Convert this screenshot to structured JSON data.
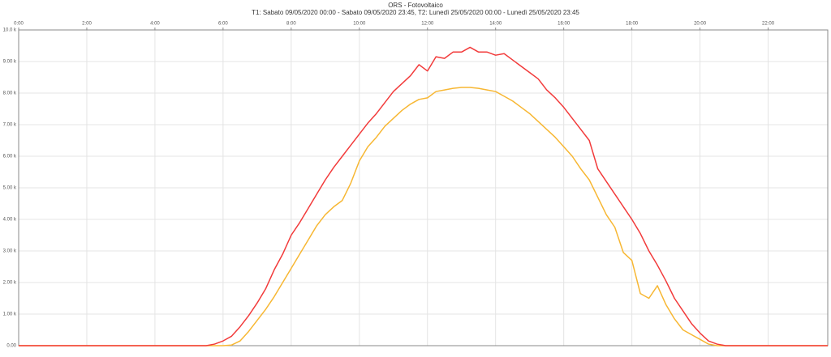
{
  "chart_data": {
    "type": "line",
    "title": "ORS - Fotovoltaico",
    "subtitle": "T1: Sabato 09/05/2020 00:00 - Sabato 09/05/2020 23:45, T2: Lunedì 25/05/2020 00:00 - Lunedì 25/05/2020 23:45",
    "x": [
      0,
      0.25,
      0.5,
      0.75,
      1,
      1.25,
      1.5,
      1.75,
      2,
      2.25,
      2.5,
      2.75,
      3,
      3.25,
      3.5,
      3.75,
      4,
      4.25,
      4.5,
      4.75,
      5,
      5.25,
      5.5,
      5.75,
      6,
      6.25,
      6.5,
      6.75,
      7,
      7.25,
      7.5,
      7.75,
      8,
      8.25,
      8.5,
      8.75,
      9,
      9.25,
      9.5,
      9.75,
      10,
      10.25,
      10.5,
      10.75,
      11,
      11.25,
      11.5,
      11.75,
      12,
      12.25,
      12.5,
      12.75,
      13,
      13.25,
      13.5,
      13.75,
      14,
      14.25,
      14.5,
      14.75,
      15,
      15.25,
      15.5,
      15.75,
      16,
      16.25,
      16.5,
      16.75,
      17,
      17.25,
      17.5,
      17.75,
      18,
      18.25,
      18.5,
      18.75,
      19,
      19.25,
      19.5,
      19.75,
      20,
      20.25,
      20.5,
      20.75,
      21,
      21.25,
      21.5,
      21.75,
      22,
      22.25,
      22.5,
      22.75,
      23,
      23.25,
      23.5,
      23.75
    ],
    "series": [
      {
        "color": "#f23b3b",
        "values": [
          0,
          0,
          0,
          0,
          0,
          0,
          0,
          0,
          0,
          0,
          0,
          0,
          0,
          0,
          0,
          0,
          0,
          0,
          0,
          0,
          0,
          0,
          0,
          50,
          150,
          300,
          600,
          950,
          1350,
          1800,
          2400,
          2900,
          3500,
          3900,
          4350,
          4800,
          5250,
          5650,
          6000,
          6350,
          6700,
          7050,
          7350,
          7700,
          8050,
          8300,
          8550,
          8900,
          8700,
          9150,
          9100,
          9300,
          9300,
          9450,
          9300,
          9300,
          9200,
          9250,
          9050,
          8850,
          8650,
          8450,
          8100,
          7850,
          7550,
          7200,
          6850,
          6500,
          5600,
          5200,
          4800,
          4400,
          4000,
          3550,
          3000,
          2550,
          2050,
          1500,
          1100,
          700,
          400,
          150,
          50,
          0,
          0,
          0,
          0,
          0,
          0,
          0,
          0,
          0,
          0,
          0,
          0,
          0
        ]
      },
      {
        "color": "#f7b733",
        "values": [
          0,
          0,
          0,
          0,
          0,
          0,
          0,
          0,
          0,
          0,
          0,
          0,
          0,
          0,
          0,
          0,
          0,
          0,
          0,
          0,
          0,
          0,
          0,
          0,
          0,
          20,
          150,
          450,
          800,
          1150,
          1550,
          2000,
          2450,
          2900,
          3350,
          3800,
          4150,
          4400,
          4600,
          5150,
          5850,
          6300,
          6600,
          6950,
          7200,
          7450,
          7650,
          7800,
          7850,
          8050,
          8100,
          8150,
          8180,
          8180,
          8150,
          8100,
          8050,
          7900,
          7750,
          7550,
          7350,
          7100,
          6850,
          6600,
          6300,
          6000,
          5600,
          5250,
          4700,
          4150,
          3750,
          2950,
          2700,
          1650,
          1500,
          1900,
          1300,
          850,
          500,
          350,
          200,
          50,
          0,
          0,
          0,
          0,
          0,
          0,
          0,
          0,
          0,
          0,
          0,
          0,
          0,
          0
        ]
      }
    ],
    "xlim": [
      0,
      23.75
    ],
    "xticks": [
      {
        "value": 0,
        "label": "0:00"
      },
      {
        "value": 2,
        "label": "2:00"
      },
      {
        "value": 4,
        "label": "4:00"
      },
      {
        "value": 6,
        "label": "6:00"
      },
      {
        "value": 8,
        "label": "8:00"
      },
      {
        "value": 10,
        "label": "10:00"
      },
      {
        "value": 12,
        "label": "12:00"
      },
      {
        "value": 14,
        "label": "14:00"
      },
      {
        "value": 16,
        "label": "16:00"
      },
      {
        "value": 18,
        "label": "18:00"
      },
      {
        "value": 20,
        "label": "20:00"
      },
      {
        "value": 22,
        "label": "22:00"
      }
    ],
    "ylim": [
      0,
      10000
    ],
    "yticks": [
      {
        "value": 0,
        "label": "0.00"
      },
      {
        "value": 1000,
        "label": "1.00 k"
      },
      {
        "value": 2000,
        "label": "2.00 k"
      },
      {
        "value": 3000,
        "label": "3.00 k"
      },
      {
        "value": 4000,
        "label": "4.00 k"
      },
      {
        "value": 5000,
        "label": "5.00 k"
      },
      {
        "value": 6000,
        "label": "6.00 k"
      },
      {
        "value": 7000,
        "label": "7.00 k"
      },
      {
        "value": 8000,
        "label": "8.00 k"
      },
      {
        "value": 9000,
        "label": "9.00 k"
      },
      {
        "value": 10000,
        "label": "10.0 k"
      }
    ],
    "grid": true
  }
}
